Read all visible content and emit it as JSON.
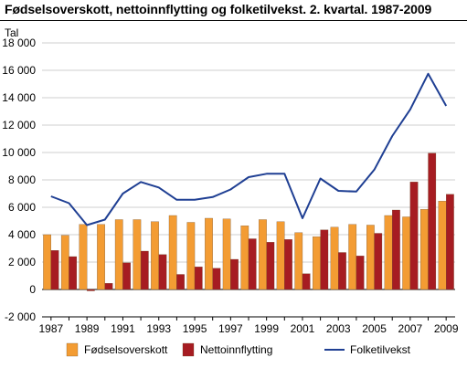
{
  "chart_data": {
    "type": "bar+line",
    "title": "Fødselsoverskott, nettoinnflytting og folketilvekst. 2. kvartal. 1987-2009",
    "ylabel": "Tal",
    "xlabel": "",
    "ylim": [
      -2000,
      18000
    ],
    "yticks": [
      -2000,
      0,
      2000,
      4000,
      6000,
      8000,
      10000,
      12000,
      14000,
      16000,
      18000
    ],
    "ytick_labels": [
      "-2 000",
      "0",
      "2 000",
      "4 000",
      "6 000",
      "8 000",
      "10 000",
      "12 000",
      "14 000",
      "16 000",
      "18 000"
    ],
    "x": [
      1987,
      1988,
      1989,
      1990,
      1991,
      1992,
      1993,
      1994,
      1995,
      1996,
      1997,
      1998,
      1999,
      2000,
      2001,
      2002,
      2003,
      2004,
      2005,
      2006,
      2007,
      2008,
      2009
    ],
    "xtick_labels": [
      "1987",
      "1989",
      "1991",
      "1993",
      "1995",
      "1997",
      "1999",
      "2001",
      "2003",
      "2005",
      "2007",
      "2009"
    ],
    "grid": "horizontal",
    "legend_position": "bottom",
    "series": [
      {
        "name": "Fødselsoverskott",
        "kind": "bar",
        "color": "#f39c33",
        "values": [
          4000,
          3950,
          4750,
          4750,
          5100,
          5100,
          4950,
          5400,
          4900,
          5200,
          5150,
          4650,
          5100,
          4950,
          4150,
          3850,
          4550,
          4750,
          4700,
          5400,
          5300,
          5850,
          6450
        ]
      },
      {
        "name": "Nettoinnflytting",
        "kind": "bar",
        "color": "#a61c22",
        "values": [
          2850,
          2400,
          -100,
          450,
          1950,
          2800,
          2550,
          1100,
          1650,
          1550,
          2200,
          3700,
          3450,
          3650,
          1150,
          4350,
          2700,
          2450,
          4100,
          5800,
          7850,
          9950,
          6950
        ]
      },
      {
        "name": "Folketilvekst",
        "kind": "line",
        "color": "#1f3f93",
        "values": [
          6800,
          6300,
          4700,
          5100,
          7000,
          7850,
          7450,
          6550,
          6550,
          6750,
          7300,
          8200,
          8450,
          8450,
          5200,
          8100,
          7200,
          7150,
          8750,
          11200,
          13150,
          15750,
          13400
        ]
      }
    ]
  }
}
